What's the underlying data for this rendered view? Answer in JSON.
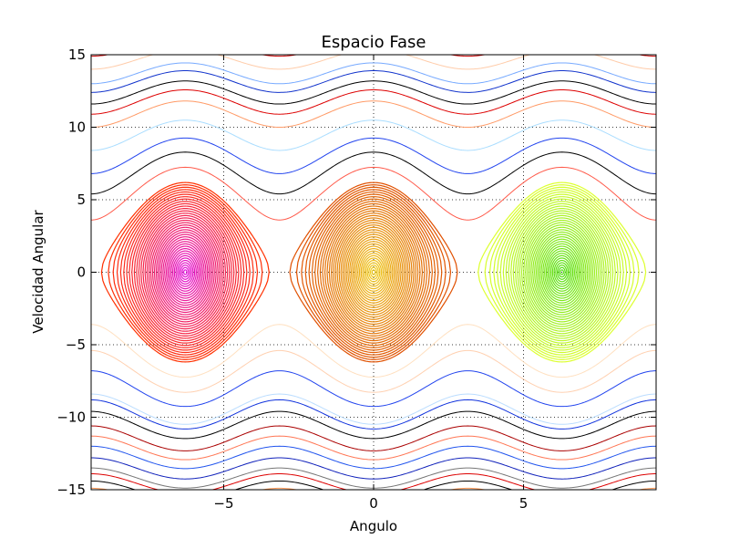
{
  "chart_data": {
    "type": "line",
    "title": "Espacio Fase",
    "xlabel": "Angulo",
    "ylabel": "Velocidad Angular",
    "xlim": [
      -9.42,
      9.42
    ],
    "ylim": [
      -15,
      15
    ],
    "grid": true,
    "legend": "none",
    "x_ticks": [
      -5,
      0,
      5
    ],
    "x_tick_labels": [
      "−5",
      "0",
      "5"
    ],
    "y_ticks": [
      -15,
      -10,
      -5,
      0,
      5,
      10,
      15
    ],
    "y_tick_labels": [
      "−15",
      "−10",
      "−5",
      "0",
      "5",
      "10",
      "15"
    ],
    "description_of_system": "Phase portrait of a simple pendulum; closed orbits inside the separatrix centered at angle -2π, 0, 2π and open rotating orbits above/below.",
    "separatrix_peak_velocity": 6.28,
    "separatrix_hyperbolic_points": [
      -9.42,
      -3.14,
      3.14,
      9.42
    ],
    "libration_families": [
      {
        "center": -6.28,
        "orbit_count": 38,
        "max_amplitude": 3.14,
        "color_inner": "#e010e0",
        "color_outer": "#ff3000"
      },
      {
        "center": 0,
        "orbit_count": 38,
        "max_amplitude": 3.14,
        "color_inner": "#f0d020",
        "color_outer": "#e05000"
      },
      {
        "center": 6.28,
        "orbit_count": 38,
        "max_amplitude": 3.14,
        "color_inner": "#50dd10",
        "color_outer": "#ddff30"
      }
    ],
    "rotation_orbits": [
      {
        "min_velocity": 3.6,
        "color": "#ff5a4a"
      },
      {
        "min_velocity": 5.4,
        "color": "#000000"
      },
      {
        "min_velocity": 6.8,
        "color": "#2244ee"
      },
      {
        "min_velocity": 8.4,
        "color": "#aaddff"
      },
      {
        "min_velocity": 10.0,
        "color": "#ff9a66"
      },
      {
        "min_velocity": 10.9,
        "color": "#dd0000"
      },
      {
        "min_velocity": 11.6,
        "color": "#000000"
      },
      {
        "min_velocity": 12.4,
        "color": "#1133cc"
      },
      {
        "min_velocity": 13.0,
        "color": "#77aaff"
      },
      {
        "min_velocity": 14.0,
        "color": "#ffccaa"
      },
      {
        "min_velocity": 14.9,
        "color": "#cc0000"
      },
      {
        "min_velocity": -3.6,
        "color": "#ffe0c0"
      },
      {
        "min_velocity": -5.4,
        "color": "#ffd0b0"
      },
      {
        "min_velocity": -6.8,
        "color": "#2244ee"
      },
      {
        "min_velocity": -8.4,
        "color": "#bbddff"
      },
      {
        "min_velocity": -8.8,
        "color": "#1133dd"
      },
      {
        "min_velocity": -9.6,
        "color": "#000000"
      },
      {
        "min_velocity": -10.6,
        "color": "#aa0000"
      },
      {
        "min_velocity": -11.3,
        "color": "#ff7755"
      },
      {
        "min_velocity": -12.0,
        "color": "#2255ee"
      },
      {
        "min_velocity": -12.8,
        "color": "#1122bb"
      },
      {
        "min_velocity": -13.5,
        "color": "#777777"
      },
      {
        "min_velocity": -13.9,
        "color": "#dd0000"
      },
      {
        "min_velocity": -14.4,
        "color": "#000000"
      },
      {
        "min_velocity": -14.9,
        "color": "#ff9955"
      }
    ]
  }
}
